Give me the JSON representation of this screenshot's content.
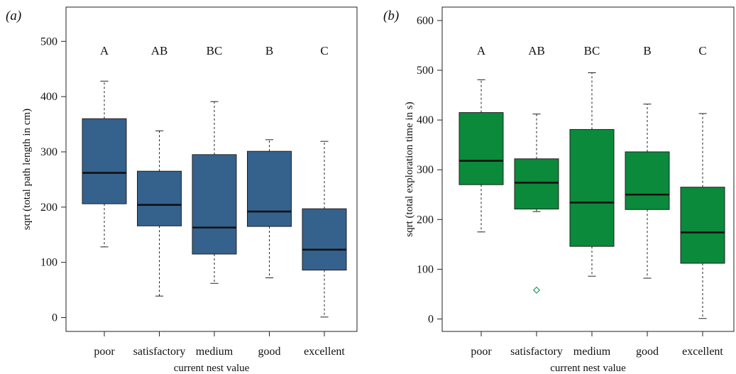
{
  "chart_data": [
    {
      "type": "box",
      "panel_label": "(a)",
      "xlabel": "current nest value",
      "ylabel": "sqrt (total path length in cm)",
      "categories": [
        "poor",
        "satisfactory",
        "medium",
        "good",
        "excellent"
      ],
      "letters": [
        "A",
        "AB",
        "BC",
        "B",
        "C"
      ],
      "y_ticks": [
        0,
        100,
        200,
        300,
        400,
        500
      ],
      "ylim": [
        -25,
        562
      ],
      "color": "#35618d",
      "boxes": [
        {
          "min": 128,
          "q1": 206,
          "median": 262,
          "q3": 360,
          "max": 428,
          "outliers": []
        },
        {
          "min": 39,
          "q1": 166,
          "median": 204,
          "q3": 265,
          "max": 338,
          "outliers": []
        },
        {
          "min": 62,
          "q1": 115,
          "median": 163,
          "q3": 295,
          "max": 391,
          "outliers": []
        },
        {
          "min": 72,
          "q1": 165,
          "median": 192,
          "q3": 301,
          "max": 322,
          "outliers": []
        },
        {
          "min": 1,
          "q1": 86,
          "median": 123,
          "q3": 197,
          "max": 319,
          "outliers": []
        }
      ]
    },
    {
      "type": "box",
      "panel_label": "(b)",
      "xlabel": "current nest value",
      "ylabel": "sqrt (total exploration time in s)",
      "categories": [
        "poor",
        "satisfactory",
        "medium",
        "good",
        "excellent"
      ],
      "letters": [
        "A",
        "AB",
        "BC",
        "B",
        "C"
      ],
      "y_ticks": [
        0,
        100,
        200,
        300,
        400,
        500,
        600
      ],
      "ylim": [
        -25,
        627
      ],
      "color": "#0a8a3a",
      "outlier_color": "#1a9a62",
      "boxes": [
        {
          "min": 175,
          "q1": 270,
          "median": 318,
          "q3": 415,
          "max": 481,
          "outliers": []
        },
        {
          "min": 216,
          "q1": 221,
          "median": 274,
          "q3": 322,
          "max": 412,
          "outliers": [
            58
          ]
        },
        {
          "min": 86,
          "q1": 146,
          "median": 234,
          "q3": 381,
          "max": 495,
          "outliers": []
        },
        {
          "min": 82,
          "q1": 220,
          "median": 250,
          "q3": 336,
          "max": 432,
          "outliers": []
        },
        {
          "min": 1,
          "q1": 112,
          "median": 174,
          "q3": 265,
          "max": 413,
          "outliers": []
        }
      ]
    }
  ]
}
